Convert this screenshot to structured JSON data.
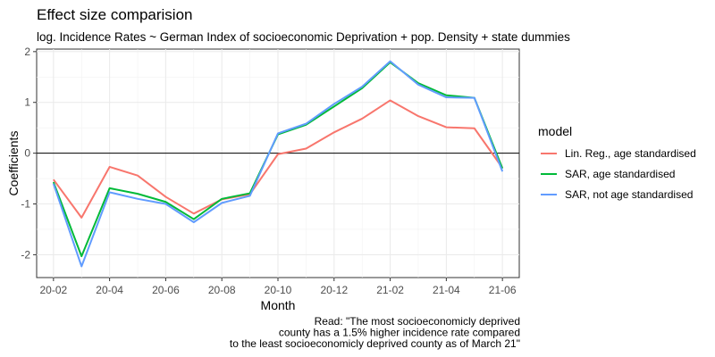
{
  "chart_data": {
    "type": "line",
    "title": "Effect size comparision",
    "subtitle": "log. Incidence Rates ~ German Index of socioeconomic Deprivation + pop. Density + state dummies",
    "xlabel": "Month",
    "ylabel": "Coefficients",
    "x": [
      "20-02",
      "20-03",
      "20-04",
      "20-05",
      "20-06",
      "20-07",
      "20-08",
      "20-09",
      "20-10",
      "20-11",
      "20-12",
      "21-01",
      "21-02",
      "21-03",
      "21-04",
      "21-05",
      "21-06"
    ],
    "x_tick_labels": [
      "20-02",
      "20-04",
      "20-06",
      "20-08",
      "20-10",
      "20-12",
      "21-02",
      "21-04",
      "21-06"
    ],
    "ylim": [
      -2.45,
      2.05
    ],
    "y_ticks": [
      -2,
      -1,
      0,
      1,
      2
    ],
    "y_tick_labels": [
      "-2",
      "-1",
      "0",
      "1",
      "2"
    ],
    "reference_line": 0,
    "grid": true,
    "legend": {
      "title": "model",
      "position": "right"
    },
    "series": [
      {
        "name": "Lin. Reg., age standardised",
        "color": "#F8766D",
        "values": [
          -0.52,
          -1.27,
          -0.27,
          -0.44,
          -0.86,
          -1.19,
          -0.91,
          -0.81,
          -0.02,
          0.09,
          0.41,
          0.68,
          1.04,
          0.73,
          0.51,
          0.49,
          -0.29
        ]
      },
      {
        "name": "SAR, age standardised",
        "color": "#00BA38",
        "values": [
          -0.57,
          -2.03,
          -0.69,
          -0.8,
          -0.96,
          -1.3,
          -0.9,
          -0.79,
          0.37,
          0.56,
          0.92,
          1.28,
          1.79,
          1.38,
          1.14,
          1.09,
          -0.3
        ]
      },
      {
        "name": "SAR, not age standardised",
        "color": "#619CFF",
        "values": [
          -0.6,
          -2.23,
          -0.77,
          -0.9,
          -1.0,
          -1.36,
          -0.98,
          -0.84,
          0.39,
          0.58,
          0.97,
          1.31,
          1.81,
          1.35,
          1.1,
          1.09,
          -0.36
        ]
      }
    ],
    "caption_lines": [
      "Read: \"The most socioeconomicly deprived",
      "county has a 1.5% higher incidence rate compared",
      "to the least socioeconomicly deprived county as of March 21\""
    ]
  }
}
